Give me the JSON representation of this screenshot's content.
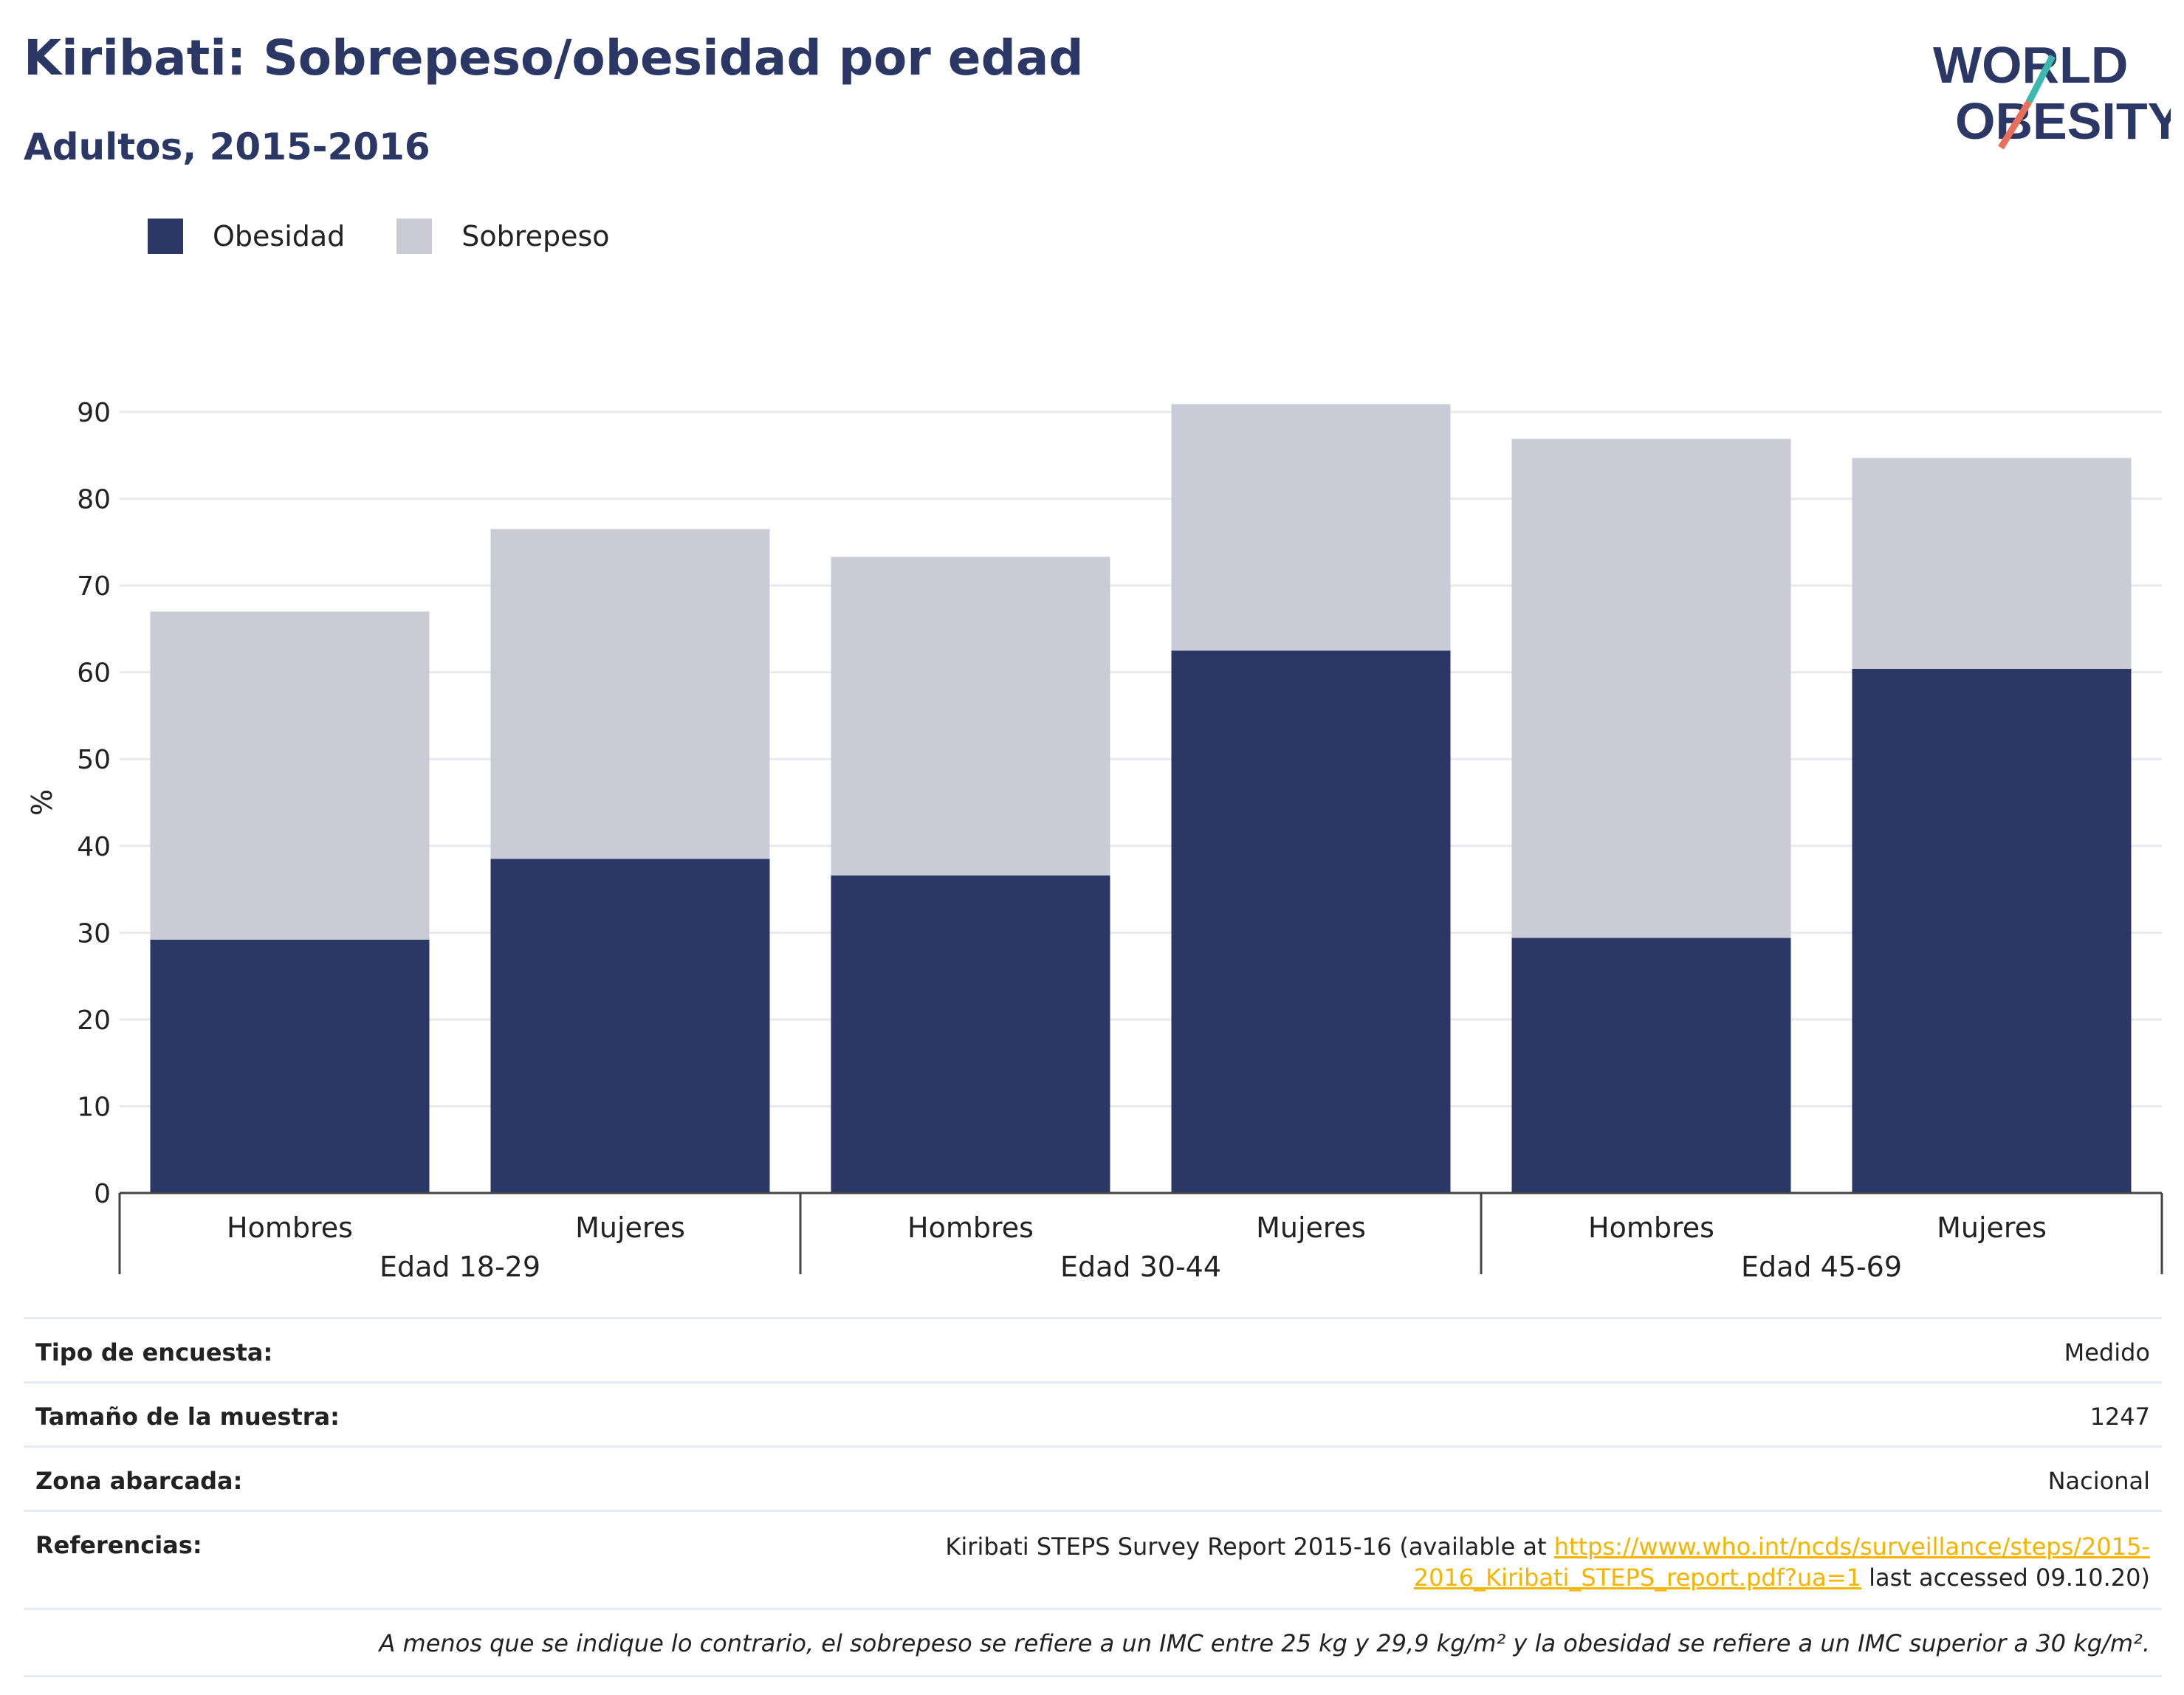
{
  "header": {
    "title": "Kiribati: Sobrepeso/obesidad por edad",
    "subtitle": "Adultos, 2015-2016"
  },
  "logo": {
    "line1": "WORLD",
    "line2": "OBESITY"
  },
  "colors": {
    "obesity": "#2b3764",
    "overweight": "#cacbd7",
    "link": "#f4b400",
    "grid": "#e8e8ee"
  },
  "chart_data": {
    "type": "bar",
    "stacked": true,
    "ylabel": "%",
    "ylim": [
      0,
      90
    ],
    "yticks": [
      0,
      10,
      20,
      30,
      40,
      50,
      60,
      70,
      80,
      90
    ],
    "grid": true,
    "legend_position": "top-left",
    "categories": [
      "Hombres",
      "Mujeres",
      "Hombres",
      "Mujeres",
      "Hombres",
      "Mujeres"
    ],
    "groups": [
      {
        "label": "Edad 18-29",
        "span": [
          0,
          1
        ]
      },
      {
        "label": "Edad 30-44",
        "span": [
          2,
          3
        ]
      },
      {
        "label": "Edad 45-69",
        "span": [
          4,
          5
        ]
      }
    ],
    "series": [
      {
        "name": "Obesidad",
        "values": [
          29.2,
          38.5,
          36.6,
          62.5,
          29.4,
          60.4
        ]
      },
      {
        "name": "Sobrepeso",
        "values": [
          37.8,
          38.0,
          36.7,
          28.4,
          57.5,
          24.3
        ]
      }
    ]
  },
  "info": {
    "survey_type_label": "Tipo de encuesta:",
    "survey_type_value": "Medido",
    "sample_size_label": "Tamaño de la muestra:",
    "sample_size_value": "1247",
    "area_label": "Zona abarcada:",
    "area_value": "Nacional",
    "references_label": "Referencias:",
    "references_text_before": "Kiribati STEPS Survey Report 2015-16 (available at ",
    "references_link": "https://www.who.int/ncds/surveillance/steps/2015-2016_Kiribati_STEPS_report.pdf?ua=1",
    "references_text_after": " last accessed 09.10.20)",
    "note": "A menos que se indique lo contrario, el sobrepeso se refiere a un IMC entre 25 kg y 29,9 kg/m² y la obesidad se refiere a un IMC superior a 30 kg/m²."
  }
}
